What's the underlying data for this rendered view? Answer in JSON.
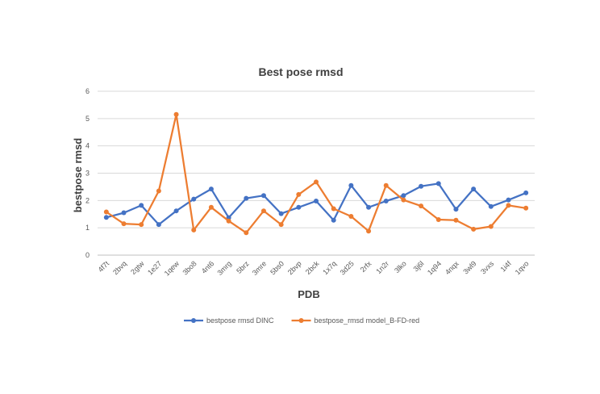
{
  "chart_data": {
    "type": "line",
    "title": "Best pose rmsd",
    "xlabel": "PDB",
    "ylabel": "bestpose rmsd",
    "ylim": [
      0,
      6
    ],
    "yticks": [
      "0",
      "1",
      "2",
      "3",
      "4",
      "5",
      "6"
    ],
    "grid": "horizontal",
    "legend_position": "bottom",
    "categories": [
      "4f7t",
      "2bvq",
      "2gtw",
      "1e27",
      "1qew",
      "3bo8",
      "4nt6",
      "3mrg",
      "5brz",
      "3mre",
      "5bs0",
      "2bvp",
      "2bck",
      "1x7q",
      "3d25",
      "2rfx",
      "1n2r",
      "3lko",
      "3j6l",
      "1q94",
      "4nqx",
      "3wl9",
      "3vxs",
      "1i4f",
      "1qvo"
    ],
    "series": [
      {
        "name": "bestpose rmsd DINC",
        "color": "#4472C4",
        "values": [
          1.38,
          1.55,
          1.82,
          1.12,
          1.62,
          2.05,
          2.42,
          1.37,
          2.08,
          2.18,
          1.52,
          1.75,
          1.98,
          1.28,
          2.55,
          1.75,
          1.98,
          2.18,
          2.52,
          2.62,
          1.68,
          2.42,
          1.78,
          2.02,
          2.28
        ]
      },
      {
        "name": "bestpose_rmsd model_B-FD-red",
        "color": "#ED7D31",
        "values": [
          1.58,
          1.15,
          1.12,
          2.35,
          5.15,
          0.92,
          1.75,
          1.25,
          0.82,
          1.62,
          1.12,
          2.22,
          2.68,
          1.7,
          1.42,
          0.88,
          2.55,
          2.02,
          1.8,
          1.3,
          1.28,
          0.95,
          1.05,
          1.82,
          1.72
        ]
      }
    ]
  }
}
